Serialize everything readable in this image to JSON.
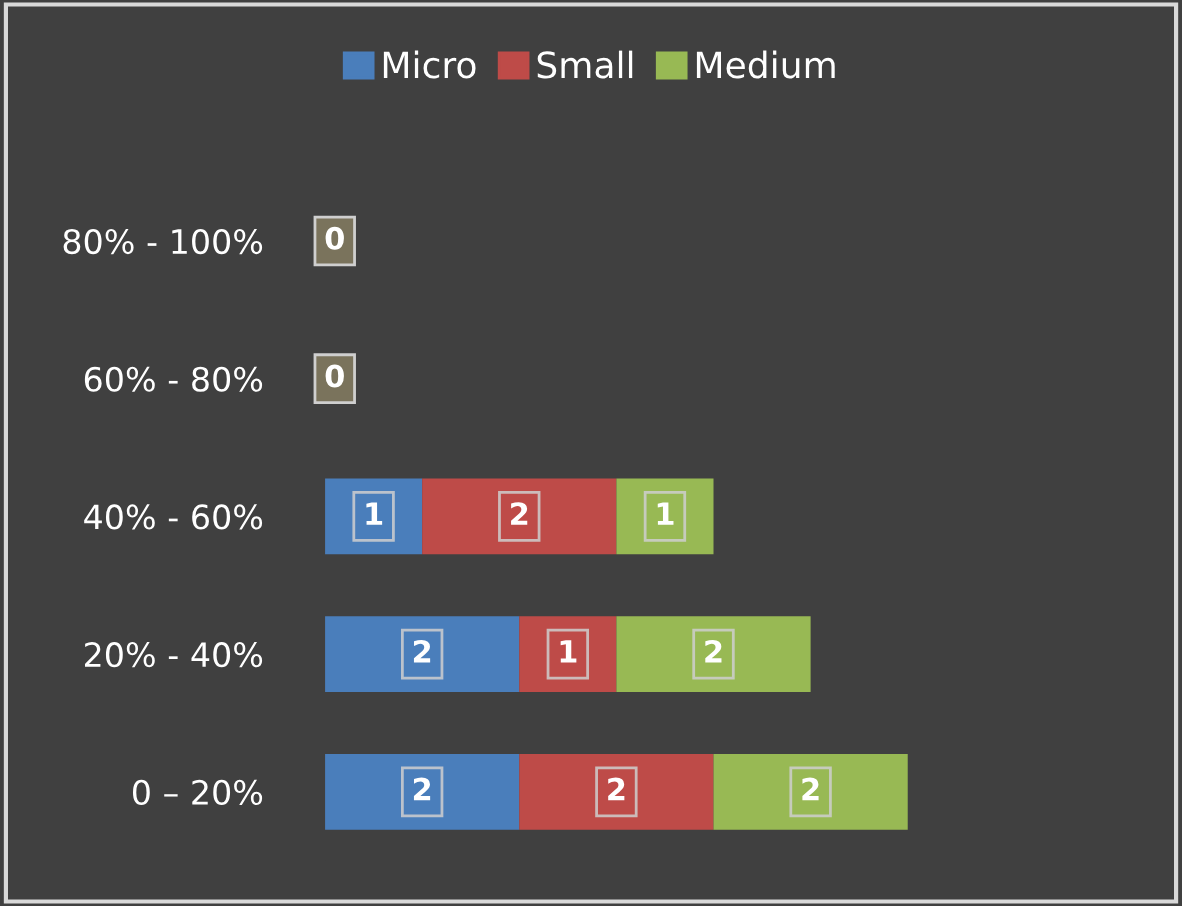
{
  "chart_data": {
    "type": "bar",
    "orientation": "horizontal",
    "stacked": true,
    "legend": "top",
    "grid": false,
    "categories": [
      "80% - 100%",
      "60% - 80%",
      "40% - 60%",
      "20% - 40%",
      "0 – 20%"
    ],
    "series": [
      {
        "name": "Micro",
        "color": "#4a7ebb",
        "values": [
          0,
          0,
          1,
          2,
          2
        ],
        "value_labels": [
          "0",
          "0",
          "1",
          "2",
          "2"
        ]
      },
      {
        "name": "Small",
        "color": "#be4b48",
        "values": [
          0,
          0,
          2,
          1,
          2
        ],
        "value_labels": [
          null,
          null,
          "2",
          "1",
          "2"
        ]
      },
      {
        "name": "Medium",
        "color": "#98b954",
        "values": [
          0,
          0,
          1,
          2,
          2
        ],
        "value_labels": [
          null,
          null,
          "1",
          "2",
          "2"
        ]
      }
    ]
  }
}
